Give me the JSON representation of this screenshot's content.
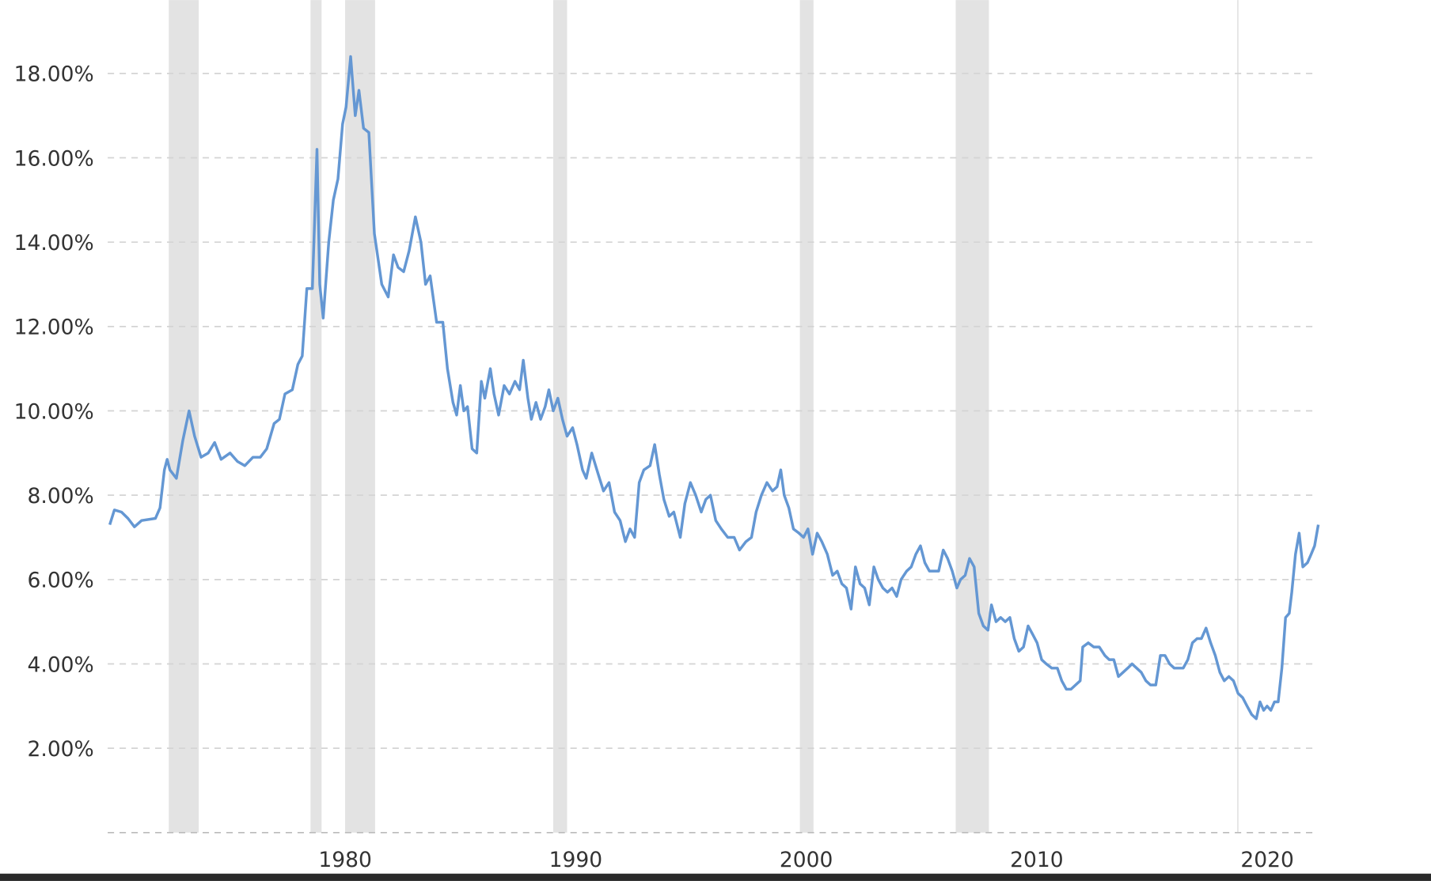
{
  "chart_data": {
    "type": "line",
    "color": "#6497d3",
    "grid": true,
    "shade_color": "#e3e3e3",
    "xlim": [
      1971.2,
      2023.7
    ],
    "xticks": [
      1980,
      1990,
      2000,
      2010,
      2020
    ],
    "ylim": [
      0,
      19.74
    ],
    "yticks": [
      {
        "value": 2,
        "label": "2.00%"
      },
      {
        "value": 4,
        "label": "4.00%"
      },
      {
        "value": 6,
        "label": "6.00%"
      },
      {
        "value": 8,
        "label": "8.00%"
      },
      {
        "value": 10,
        "label": "10.00%"
      },
      {
        "value": 12,
        "label": "12.00%"
      },
      {
        "value": 14,
        "label": "14.00%"
      },
      {
        "value": 16,
        "label": "16.00%"
      },
      {
        "value": 18,
        "label": "18.00%"
      }
    ],
    "shaded_periods": [
      [
        1973.85,
        1975.15
      ],
      [
        1980.0,
        1980.48
      ],
      [
        1981.5,
        1982.8
      ],
      [
        1990.53,
        1991.13
      ],
      [
        2001.23,
        2001.82
      ],
      [
        2007.99,
        2009.43
      ],
      [
        2020.2,
        2020.24
      ]
    ],
    "x": [
      1971.29,
      1971.49,
      1971.8,
      1972.08,
      1972.36,
      1972.67,
      1973.27,
      1973.47,
      1973.66,
      1973.78,
      1973.9,
      1974.18,
      1974.46,
      1974.73,
      1974.97,
      1975.25,
      1975.56,
      1975.84,
      1976.12,
      1976.51,
      1976.83,
      1977.15,
      1977.5,
      1977.82,
      1978.1,
      1978.42,
      1978.65,
      1978.89,
      1979.21,
      1979.45,
      1979.64,
      1979.84,
      1980.08,
      1980.28,
      1980.4,
      1980.55,
      1980.79,
      1980.99,
      1981.19,
      1981.39,
      1981.54,
      1981.74,
      1981.94,
      1982.1,
      1982.3,
      1982.53,
      1982.77,
      1982.93,
      1983.09,
      1983.37,
      1983.6,
      1983.8,
      1984.04,
      1984.28,
      1984.55,
      1984.79,
      1984.99,
      1985.19,
      1985.47,
      1985.74,
      1985.94,
      1986.18,
      1986.34,
      1986.5,
      1986.65,
      1986.81,
      1987.01,
      1987.21,
      1987.41,
      1987.56,
      1987.8,
      1987.96,
      1988.16,
      1988.4,
      1988.63,
      1988.87,
      1989.07,
      1989.23,
      1989.43,
      1989.58,
      1989.78,
      1989.98,
      1990.18,
      1990.34,
      1990.53,
      1990.73,
      1990.93,
      1991.13,
      1991.37,
      1991.56,
      1991.8,
      1991.96,
      1992.2,
      1992.48,
      1992.71,
      1992.95,
      1993.19,
      1993.43,
      1993.66,
      1993.86,
      1994.06,
      1994.26,
      1994.46,
      1994.73,
      1994.93,
      1995.13,
      1995.33,
      1995.56,
      1995.76,
      1996.04,
      1996.24,
      1996.48,
      1996.71,
      1996.95,
      1997.15,
      1997.35,
      1997.58,
      1997.82,
      1998.1,
      1998.38,
      1998.61,
      1998.89,
      1999.13,
      1999.33,
      1999.56,
      1999.8,
      2000.04,
      2000.24,
      2000.4,
      2000.55,
      2000.75,
      2000.95,
      2001.19,
      2001.39,
      2001.58,
      2001.78,
      2001.98,
      2002.18,
      2002.42,
      2002.65,
      2002.85,
      2003.05,
      2003.25,
      2003.45,
      2003.64,
      2003.84,
      2004.04,
      2004.24,
      2004.44,
      2004.63,
      2004.83,
      2005.03,
      2005.23,
      2005.43,
      2005.62,
      2005.86,
      2006.06,
      2006.26,
      2006.46,
      2006.65,
      2006.85,
      2007.05,
      2007.25,
      2007.45,
      2007.64,
      2007.84,
      2008.04,
      2008.2,
      2008.4,
      2008.59,
      2008.79,
      2008.99,
      2009.19,
      2009.39,
      2009.54,
      2009.74,
      2009.94,
      2010.14,
      2010.34,
      2010.53,
      2010.73,
      2010.93,
      2011.13,
      2011.33,
      2011.52,
      2011.72,
      2011.92,
      2012.16,
      2012.4,
      2012.59,
      2012.79,
      2012.99,
      2013.19,
      2013.39,
      2013.5,
      2013.74,
      2013.98,
      2014.22,
      2014.46,
      2014.65,
      2014.85,
      2015.05,
      2015.25,
      2015.45,
      2015.64,
      2015.84,
      2016.04,
      2016.24,
      2016.44,
      2016.67,
      2016.87,
      2017.07,
      2017.27,
      2017.47,
      2017.66,
      2017.86,
      2018.06,
      2018.26,
      2018.46,
      2018.65,
      2018.85,
      2019.05,
      2019.25,
      2019.45,
      2019.64,
      2019.84,
      2020.04,
      2020.24,
      2020.44,
      2020.63,
      2020.83,
      2021.03,
      2021.19,
      2021.35,
      2021.5,
      2021.66,
      2021.82,
      2021.98,
      2022.14,
      2022.3,
      2022.46,
      2022.57,
      2022.73,
      2022.89,
      2023.05,
      2023.25,
      2023.41,
      2023.56,
      2023.72
    ],
    "values": [
      7.3,
      7.65,
      7.6,
      7.45,
      7.25,
      7.4,
      7.45,
      7.7,
      8.6,
      8.85,
      8.6,
      8.4,
      9.3,
      10.0,
      9.4,
      8.9,
      9.0,
      9.25,
      8.85,
      9.0,
      8.8,
      8.7,
      8.9,
      8.9,
      9.1,
      9.7,
      9.8,
      10.4,
      10.5,
      11.1,
      11.3,
      12.9,
      12.9,
      16.2,
      13.0,
      12.2,
      14.0,
      15.0,
      15.5,
      16.8,
      17.2,
      18.4,
      17.0,
      17.6,
      16.7,
      16.6,
      14.2,
      13.6,
      13.0,
      12.7,
      13.7,
      13.4,
      13.3,
      13.8,
      14.6,
      14.0,
      13.0,
      13.2,
      12.1,
      12.1,
      11.0,
      10.2,
      9.9,
      10.6,
      10.0,
      10.1,
      9.1,
      9.0,
      10.7,
      10.3,
      11.0,
      10.4,
      9.9,
      10.6,
      10.4,
      10.7,
      10.5,
      11.2,
      10.3,
      9.8,
      10.2,
      9.8,
      10.1,
      10.5,
      10.0,
      10.3,
      9.8,
      9.4,
      9.6,
      9.2,
      8.6,
      8.4,
      9.0,
      8.5,
      8.1,
      8.3,
      7.6,
      7.4,
      6.9,
      7.2,
      7.0,
      8.3,
      8.6,
      8.7,
      9.2,
      8.5,
      7.9,
      7.5,
      7.6,
      7.0,
      7.8,
      8.3,
      8.0,
      7.6,
      7.9,
      8.0,
      7.4,
      7.2,
      7.0,
      7.0,
      6.7,
      6.9,
      7.0,
      7.6,
      8.0,
      8.3,
      8.1,
      8.2,
      8.6,
      8.0,
      7.7,
      7.2,
      7.1,
      7.0,
      7.2,
      6.6,
      7.1,
      6.9,
      6.6,
      6.1,
      6.2,
      5.9,
      5.8,
      5.3,
      6.3,
      5.9,
      5.8,
      5.4,
      6.3,
      6.0,
      5.8,
      5.7,
      5.8,
      5.6,
      6.0,
      6.2,
      6.3,
      6.6,
      6.8,
      6.4,
      6.2,
      6.2,
      6.2,
      6.7,
      6.5,
      6.2,
      5.8,
      6.0,
      6.1,
      6.5,
      6.3,
      5.2,
      4.9,
      4.8,
      5.4,
      5.0,
      5.1,
      5.0,
      5.1,
      4.6,
      4.3,
      4.4,
      4.9,
      4.7,
      4.5,
      4.1,
      4.0,
      3.9,
      3.9,
      3.6,
      3.4,
      3.4,
      3.5,
      3.6,
      4.4,
      4.5,
      4.4,
      4.4,
      4.2,
      4.1,
      4.1,
      3.7,
      3.8,
      3.9,
      4.0,
      3.9,
      3.8,
      3.6,
      3.5,
      3.5,
      4.2,
      4.2,
      4.0,
      3.9,
      3.9,
      3.9,
      4.1,
      4.5,
      4.6,
      4.6,
      4.85,
      4.5,
      4.2,
      3.8,
      3.6,
      3.7,
      3.6,
      3.3,
      3.2,
      3.0,
      2.8,
      2.7,
      3.1,
      2.9,
      3.0,
      2.9,
      3.1,
      3.1,
      3.9,
      5.1,
      5.2,
      5.7,
      6.6,
      7.1,
      6.3,
      6.4,
      6.6,
      6.8,
      7.3
    ]
  }
}
